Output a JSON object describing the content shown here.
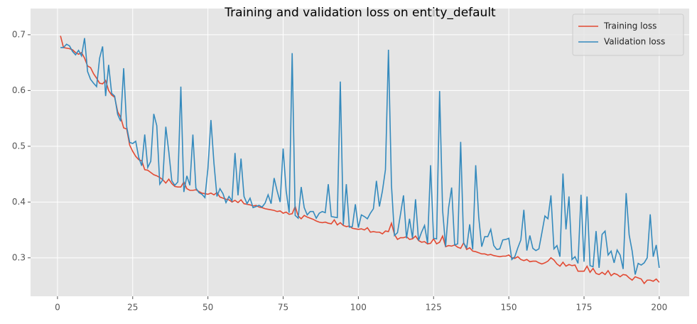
{
  "chart_data": {
    "type": "line",
    "title": "Training and validation loss on entity_default",
    "x": [
      1,
      2,
      3,
      4,
      5,
      6,
      7,
      8,
      9,
      10,
      11,
      12,
      13,
      14,
      15,
      16,
      17,
      18,
      19,
      20,
      21,
      22,
      23,
      24,
      25,
      26,
      27,
      28,
      29,
      30,
      31,
      32,
      33,
      34,
      35,
      36,
      37,
      38,
      39,
      40,
      41,
      42,
      43,
      44,
      45,
      46,
      47,
      48,
      49,
      50,
      51,
      52,
      53,
      54,
      55,
      56,
      57,
      58,
      59,
      60,
      61,
      62,
      63,
      64,
      65,
      66,
      67,
      68,
      69,
      70,
      71,
      72,
      73,
      74,
      75,
      76,
      77,
      78,
      79,
      80,
      81,
      82,
      83,
      84,
      85,
      86,
      87,
      88,
      89,
      90,
      91,
      92,
      93,
      94,
      95,
      96,
      97,
      98,
      99,
      100,
      101,
      102,
      103,
      104,
      105,
      106,
      107,
      108,
      109,
      110,
      111,
      112,
      113,
      114,
      115,
      116,
      117,
      118,
      119,
      120,
      121,
      122,
      123,
      124,
      125,
      126,
      127,
      128,
      129,
      130,
      131,
      132,
      133,
      134,
      135,
      136,
      137,
      138,
      139,
      140,
      141,
      142,
      143,
      144,
      145,
      146,
      147,
      148,
      149,
      150,
      151,
      152,
      153,
      154,
      155,
      156,
      157,
      158,
      159,
      160,
      161,
      162,
      163,
      164,
      165,
      166,
      167,
      168,
      169,
      170,
      171,
      172,
      173,
      174,
      175,
      176,
      177,
      178,
      179,
      180,
      181,
      182,
      183,
      184,
      185,
      186,
      187,
      188,
      189,
      190,
      191,
      192,
      193,
      194,
      195,
      196,
      197,
      198,
      199,
      200
    ],
    "series": [
      {
        "name": "Training loss",
        "color": "#e24a33",
        "values": [
          0.698,
          0.677,
          0.676,
          0.675,
          0.673,
          0.668,
          0.665,
          0.668,
          0.658,
          0.644,
          0.641,
          0.63,
          0.622,
          0.613,
          0.612,
          0.618,
          0.6,
          0.592,
          0.588,
          0.562,
          0.552,
          0.533,
          0.531,
          0.502,
          0.491,
          0.482,
          0.476,
          0.474,
          0.458,
          0.457,
          0.453,
          0.449,
          0.447,
          0.444,
          0.44,
          0.434,
          0.441,
          0.433,
          0.428,
          0.427,
          0.427,
          0.436,
          0.424,
          0.421,
          0.421,
          0.422,
          0.419,
          0.416,
          0.415,
          0.414,
          0.416,
          0.413,
          0.417,
          0.409,
          0.407,
          0.405,
          0.404,
          0.4,
          0.403,
          0.399,
          0.404,
          0.397,
          0.396,
          0.395,
          0.393,
          0.394,
          0.391,
          0.39,
          0.388,
          0.387,
          0.386,
          0.385,
          0.383,
          0.384,
          0.38,
          0.382,
          0.378,
          0.379,
          0.392,
          0.375,
          0.37,
          0.376,
          0.373,
          0.371,
          0.369,
          0.366,
          0.364,
          0.363,
          0.364,
          0.362,
          0.361,
          0.368,
          0.359,
          0.363,
          0.358,
          0.356,
          0.357,
          0.353,
          0.352,
          0.351,
          0.352,
          0.35,
          0.354,
          0.346,
          0.347,
          0.346,
          0.346,
          0.343,
          0.348,
          0.347,
          0.362,
          0.342,
          0.333,
          0.336,
          0.336,
          0.338,
          0.333,
          0.334,
          0.339,
          0.331,
          0.328,
          0.329,
          0.325,
          0.326,
          0.334,
          0.325,
          0.328,
          0.339,
          0.32,
          0.322,
          0.321,
          0.323,
          0.319,
          0.317,
          0.327,
          0.315,
          0.318,
          0.312,
          0.311,
          0.309,
          0.307,
          0.307,
          0.305,
          0.306,
          0.304,
          0.303,
          0.302,
          0.303,
          0.303,
          0.305,
          0.3,
          0.299,
          0.302,
          0.297,
          0.295,
          0.297,
          0.293,
          0.294,
          0.294,
          0.291,
          0.289,
          0.291,
          0.294,
          0.3,
          0.296,
          0.289,
          0.285,
          0.292,
          0.285,
          0.288,
          0.286,
          0.287,
          0.276,
          0.276,
          0.276,
          0.285,
          0.274,
          0.281,
          0.272,
          0.27,
          0.274,
          0.27,
          0.277,
          0.268,
          0.272,
          0.27,
          0.266,
          0.27,
          0.269,
          0.264,
          0.26,
          0.266,
          0.264,
          0.262,
          0.254,
          0.26,
          0.26,
          0.258,
          0.262,
          0.256
        ]
      },
      {
        "name": "Validation loss",
        "color": "#348abd",
        "values": [
          0.677,
          0.677,
          0.683,
          0.68,
          0.67,
          0.664,
          0.672,
          0.662,
          0.694,
          0.634,
          0.62,
          0.613,
          0.607,
          0.658,
          0.679,
          0.59,
          0.646,
          0.595,
          0.59,
          0.557,
          0.545,
          0.64,
          0.535,
          0.507,
          0.505,
          0.509,
          0.48,
          0.465,
          0.521,
          0.462,
          0.473,
          0.558,
          0.537,
          0.432,
          0.44,
          0.535,
          0.49,
          0.438,
          0.43,
          0.436,
          0.607,
          0.418,
          0.447,
          0.43,
          0.521,
          0.425,
          0.417,
          0.414,
          0.408,
          0.46,
          0.547,
          0.47,
          0.41,
          0.424,
          0.415,
          0.399,
          0.41,
          0.402,
          0.488,
          0.412,
          0.478,
          0.41,
          0.397,
          0.407,
          0.39,
          0.392,
          0.394,
          0.391,
          0.398,
          0.413,
          0.397,
          0.443,
          0.42,
          0.4,
          0.496,
          0.42,
          0.381,
          0.667,
          0.376,
          0.371,
          0.427,
          0.39,
          0.377,
          0.383,
          0.383,
          0.371,
          0.38,
          0.383,
          0.381,
          0.432,
          0.374,
          0.373,
          0.372,
          0.616,
          0.359,
          0.432,
          0.355,
          0.356,
          0.396,
          0.354,
          0.377,
          0.374,
          0.37,
          0.38,
          0.388,
          0.438,
          0.392,
          0.42,
          0.458,
          0.673,
          0.43,
          0.34,
          0.345,
          0.378,
          0.412,
          0.335,
          0.37,
          0.335,
          0.405,
          0.331,
          0.346,
          0.358,
          0.326,
          0.466,
          0.335,
          0.334,
          0.599,
          0.385,
          0.32,
          0.39,
          0.426,
          0.323,
          0.325,
          0.508,
          0.326,
          0.318,
          0.36,
          0.315,
          0.466,
          0.373,
          0.32,
          0.338,
          0.338,
          0.351,
          0.322,
          0.315,
          0.316,
          0.332,
          0.333,
          0.335,
          0.297,
          0.302,
          0.318,
          0.332,
          0.386,
          0.313,
          0.34,
          0.317,
          0.313,
          0.316,
          0.345,
          0.375,
          0.37,
          0.412,
          0.316,
          0.322,
          0.302,
          0.451,
          0.351,
          0.41,
          0.297,
          0.302,
          0.29,
          0.413,
          0.293,
          0.41,
          0.286,
          0.284,
          0.348,
          0.282,
          0.342,
          0.348,
          0.305,
          0.312,
          0.291,
          0.314,
          0.305,
          0.28,
          0.416,
          0.341,
          0.312,
          0.27,
          0.29,
          0.287,
          0.291,
          0.3,
          0.378,
          0.302,
          0.323,
          0.282
        ]
      }
    ],
    "xlim": [
      -8.95,
      209.95
    ],
    "xticks": [
      0,
      25,
      50,
      75,
      100,
      125,
      150,
      175,
      200
    ],
    "ylim": [
      0.231,
      0.747
    ],
    "yticks": [
      0.3,
      0.4,
      0.5,
      0.6,
      0.7
    ],
    "grid": true,
    "legend": "upper right"
  }
}
